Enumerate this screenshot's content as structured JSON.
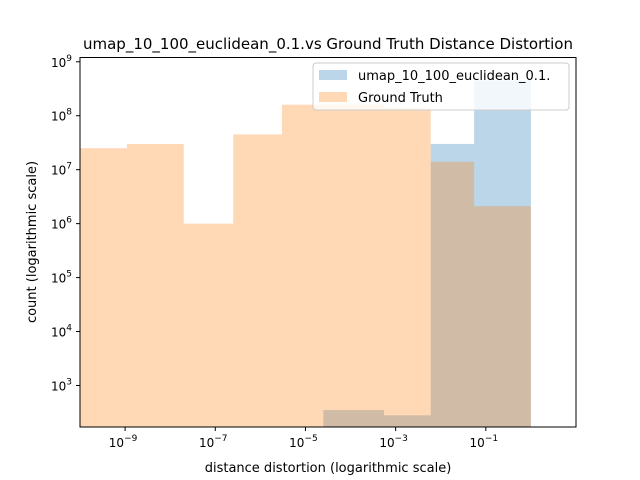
{
  "chart_data": {
    "type": "bar",
    "title": "umap_10_100_euclidean_0.1.vs Ground Truth Distance Distortion",
    "xlabel": "distance distortion (logarithmic scale)",
    "ylabel": "count (logarithmic scale)",
    "x_scale": "log",
    "y_scale": "log",
    "xlim": [
      1e-10,
      10
    ],
    "ylim": [
      170,
      1200000000.0
    ],
    "x_ticks": [
      {
        "value": 1e-09,
        "base": "10",
        "exp": "−9"
      },
      {
        "value": 1e-07,
        "base": "10",
        "exp": "−7"
      },
      {
        "value": 1e-05,
        "base": "10",
        "exp": "−5"
      },
      {
        "value": 0.001,
        "base": "10",
        "exp": "−3"
      },
      {
        "value": 0.1,
        "base": "10",
        "exp": "−1"
      }
    ],
    "y_ticks": [
      {
        "value": 1000.0,
        "base": "10",
        "exp": "3"
      },
      {
        "value": 10000.0,
        "base": "10",
        "exp": "4"
      },
      {
        "value": 100000.0,
        "base": "10",
        "exp": "5"
      },
      {
        "value": 1000000.0,
        "base": "10",
        "exp": "6"
      },
      {
        "value": 10000000.0,
        "base": "10",
        "exp": "7"
      },
      {
        "value": 100000000.0,
        "base": "10",
        "exp": "8"
      },
      {
        "value": 1000000000.0,
        "base": "10",
        "exp": "9"
      }
    ],
    "legend_position": "top-right",
    "series": [
      {
        "name": "umap_10_100_euclidean_0.1.",
        "color": "#1f77b4",
        "alpha": 0.3,
        "bins": [
          {
            "x0": 2.5e-05,
            "x1": 0.00055,
            "count": 350
          },
          {
            "x0": 0.00055,
            "x1": 0.006,
            "count": 280
          },
          {
            "x0": 0.006,
            "x1": 0.055,
            "count": 30000000.0
          },
          {
            "x0": 0.055,
            "x1": 1.0,
            "count": 450000000.0
          }
        ]
      },
      {
        "name": "Ground Truth",
        "color": "#ff7f0e",
        "alpha": 0.3,
        "bins": [
          {
            "x0": 1e-10,
            "x1": 1.1e-09,
            "count": 25000000.0
          },
          {
            "x0": 1.1e-09,
            "x1": 2e-08,
            "count": 30000000.0
          },
          {
            "x0": 2e-08,
            "x1": 2.5e-07,
            "count": 1000000.0
          },
          {
            "x0": 2.5e-07,
            "x1": 3e-06,
            "count": 45000000.0
          },
          {
            "x0": 3e-06,
            "x1": 0.00055,
            "count": 160000000.0
          },
          {
            "x0": 0.00055,
            "x1": 0.006,
            "count": 140000000.0
          },
          {
            "x0": 0.006,
            "x1": 0.055,
            "count": 14000000.0
          },
          {
            "x0": 0.055,
            "x1": 1.0,
            "count": 2100000.0
          }
        ]
      }
    ]
  }
}
